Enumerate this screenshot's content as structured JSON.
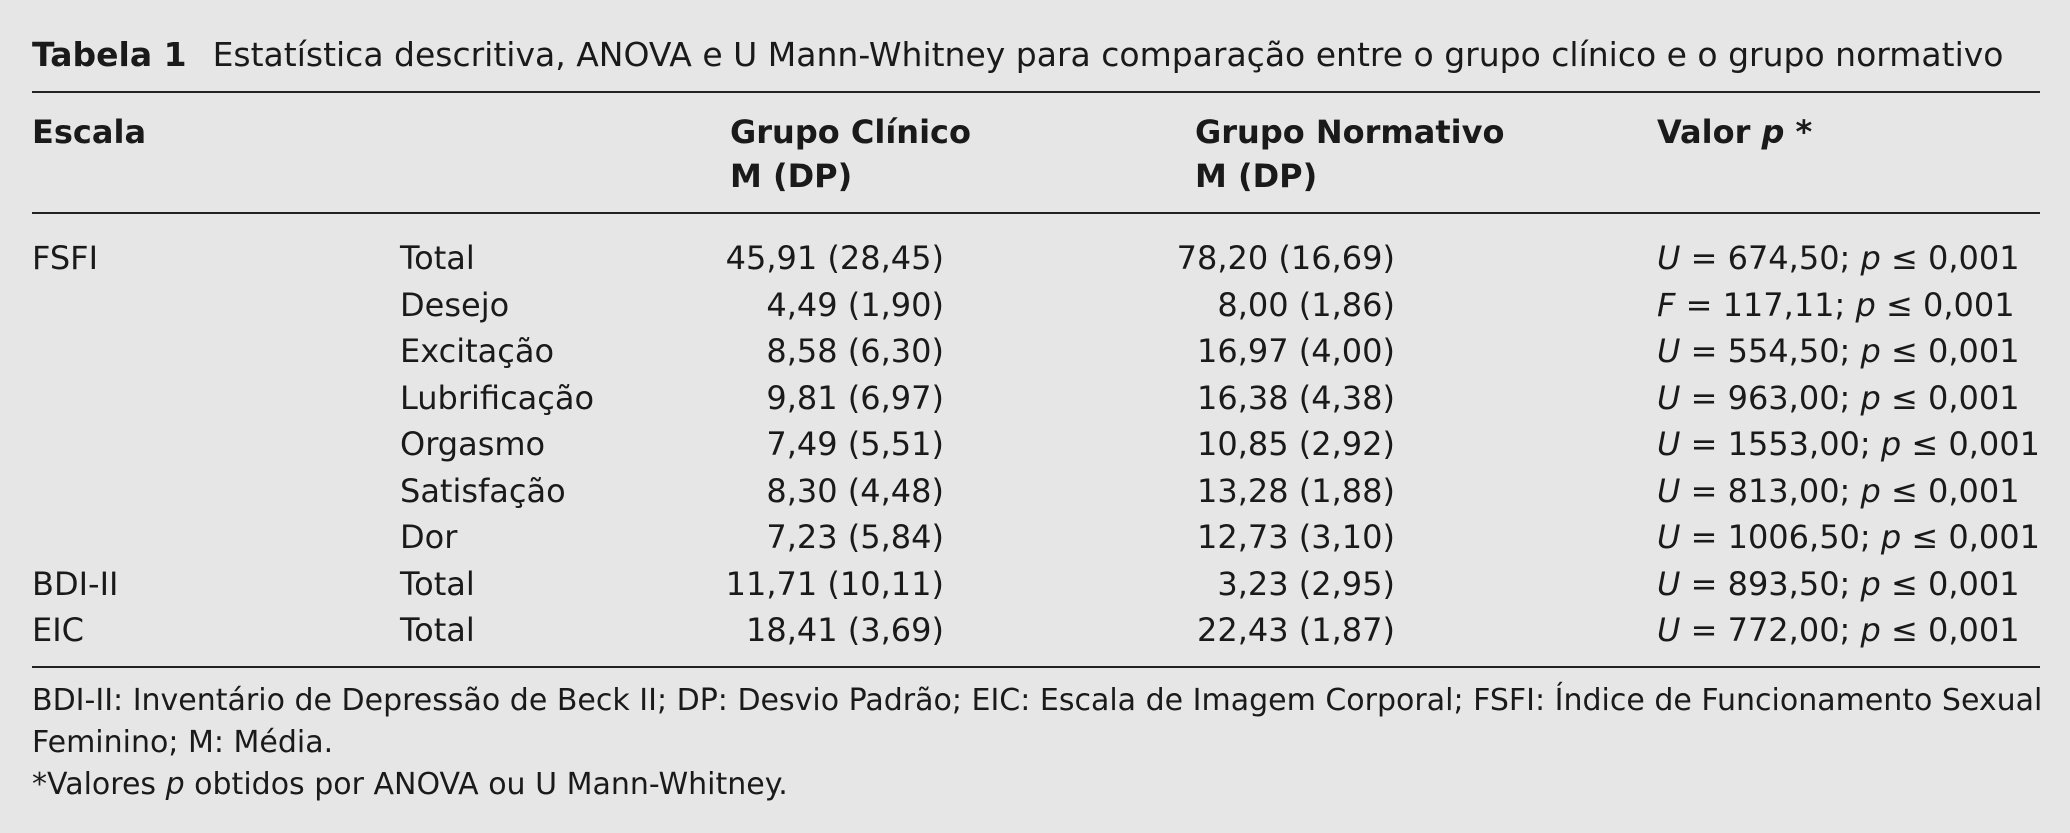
{
  "caption": {
    "label": "Tabela 1",
    "text": "Estatística descritiva, ANOVA e U Mann-Whitney para comparação entre o grupo clínico e o grupo normativo"
  },
  "header": {
    "scale": "Escala",
    "clinical_line1": "Grupo Clínico",
    "clinical_line2": "M (DP)",
    "normative_line1": "Grupo Normativo",
    "normative_line2": "M (DP)",
    "pvalue_prefix": "Valor ",
    "pvalue_p": "p",
    "pvalue_suffix": " *"
  },
  "rows": [
    {
      "scale": "FSFI",
      "sub": "Total",
      "clinical": "45,91 (28,45)",
      "normative": "78,20 (16,69)",
      "stat": "U",
      "stat_value": " = 674,50; ",
      "p": "p",
      "p_value": " ≤ 0,001"
    },
    {
      "scale": "",
      "sub": "Desejo",
      "clinical": "4,49 (1,90)",
      "normative": "8,00 (1,86)",
      "stat": "F",
      "stat_value": " = 117,11; ",
      "p": "p",
      "p_value": " ≤ 0,001"
    },
    {
      "scale": "",
      "sub": "Excitação",
      "clinical": "8,58 (6,30)",
      "normative": "16,97 (4,00)",
      "stat": "U",
      "stat_value": " = 554,50; ",
      "p": "p",
      "p_value": " ≤ 0,001"
    },
    {
      "scale": "",
      "sub": "Lubrificação",
      "clinical": "9,81 (6,97)",
      "normative": "16,38 (4,38)",
      "stat": "U",
      "stat_value": " = 963,00; ",
      "p": "p",
      "p_value": " ≤ 0,001"
    },
    {
      "scale": "",
      "sub": "Orgasmo",
      "clinical": "7,49 (5,51)",
      "normative": "10,85 (2,92)",
      "stat": "U",
      "stat_value": " = 1553,00; ",
      "p": "p",
      "p_value": " ≤ 0,001"
    },
    {
      "scale": "",
      "sub": "Satisfação",
      "clinical": "8,30 (4,48)",
      "normative": "13,28 (1,88)",
      "stat": "U",
      "stat_value": " = 813,00; ",
      "p": "p",
      "p_value": " ≤ 0,001"
    },
    {
      "scale": "",
      "sub": "Dor",
      "clinical": "7,23 (5,84)",
      "normative": "12,73 (3,10)",
      "stat": "U",
      "stat_value": " = 1006,50; ",
      "p": "p",
      "p_value": " ≤ 0,001"
    },
    {
      "scale": "BDI-II",
      "sub": "Total",
      "clinical": "11,71 (10,11)",
      "normative": "3,23 (2,95)",
      "stat": "U",
      "stat_value": " = 893,50; ",
      "p": "p",
      "p_value": " ≤ 0,001"
    },
    {
      "scale": "EIC",
      "sub": "Total",
      "clinical": "18,41 (3,69)",
      "normative": "22,43 (1,87)",
      "stat": "U",
      "stat_value": " = 772,00; ",
      "p": "p",
      "p_value": " ≤ 0,001"
    }
  ],
  "notes": {
    "abbrev_line1": "BDI-II: Inventário de Depressão de Beck II; DP: Desvio Padrão; EIC: Escala de Imagem Corporal; FSFI: Índice de Funcionamento Sexual",
    "abbrev_line2": "Feminino; M: Média.",
    "footnote_prefix": "*Valores ",
    "footnote_p": "p",
    "footnote_suffix": " obtidos por ANOVA ou U Mann-Whitney."
  }
}
